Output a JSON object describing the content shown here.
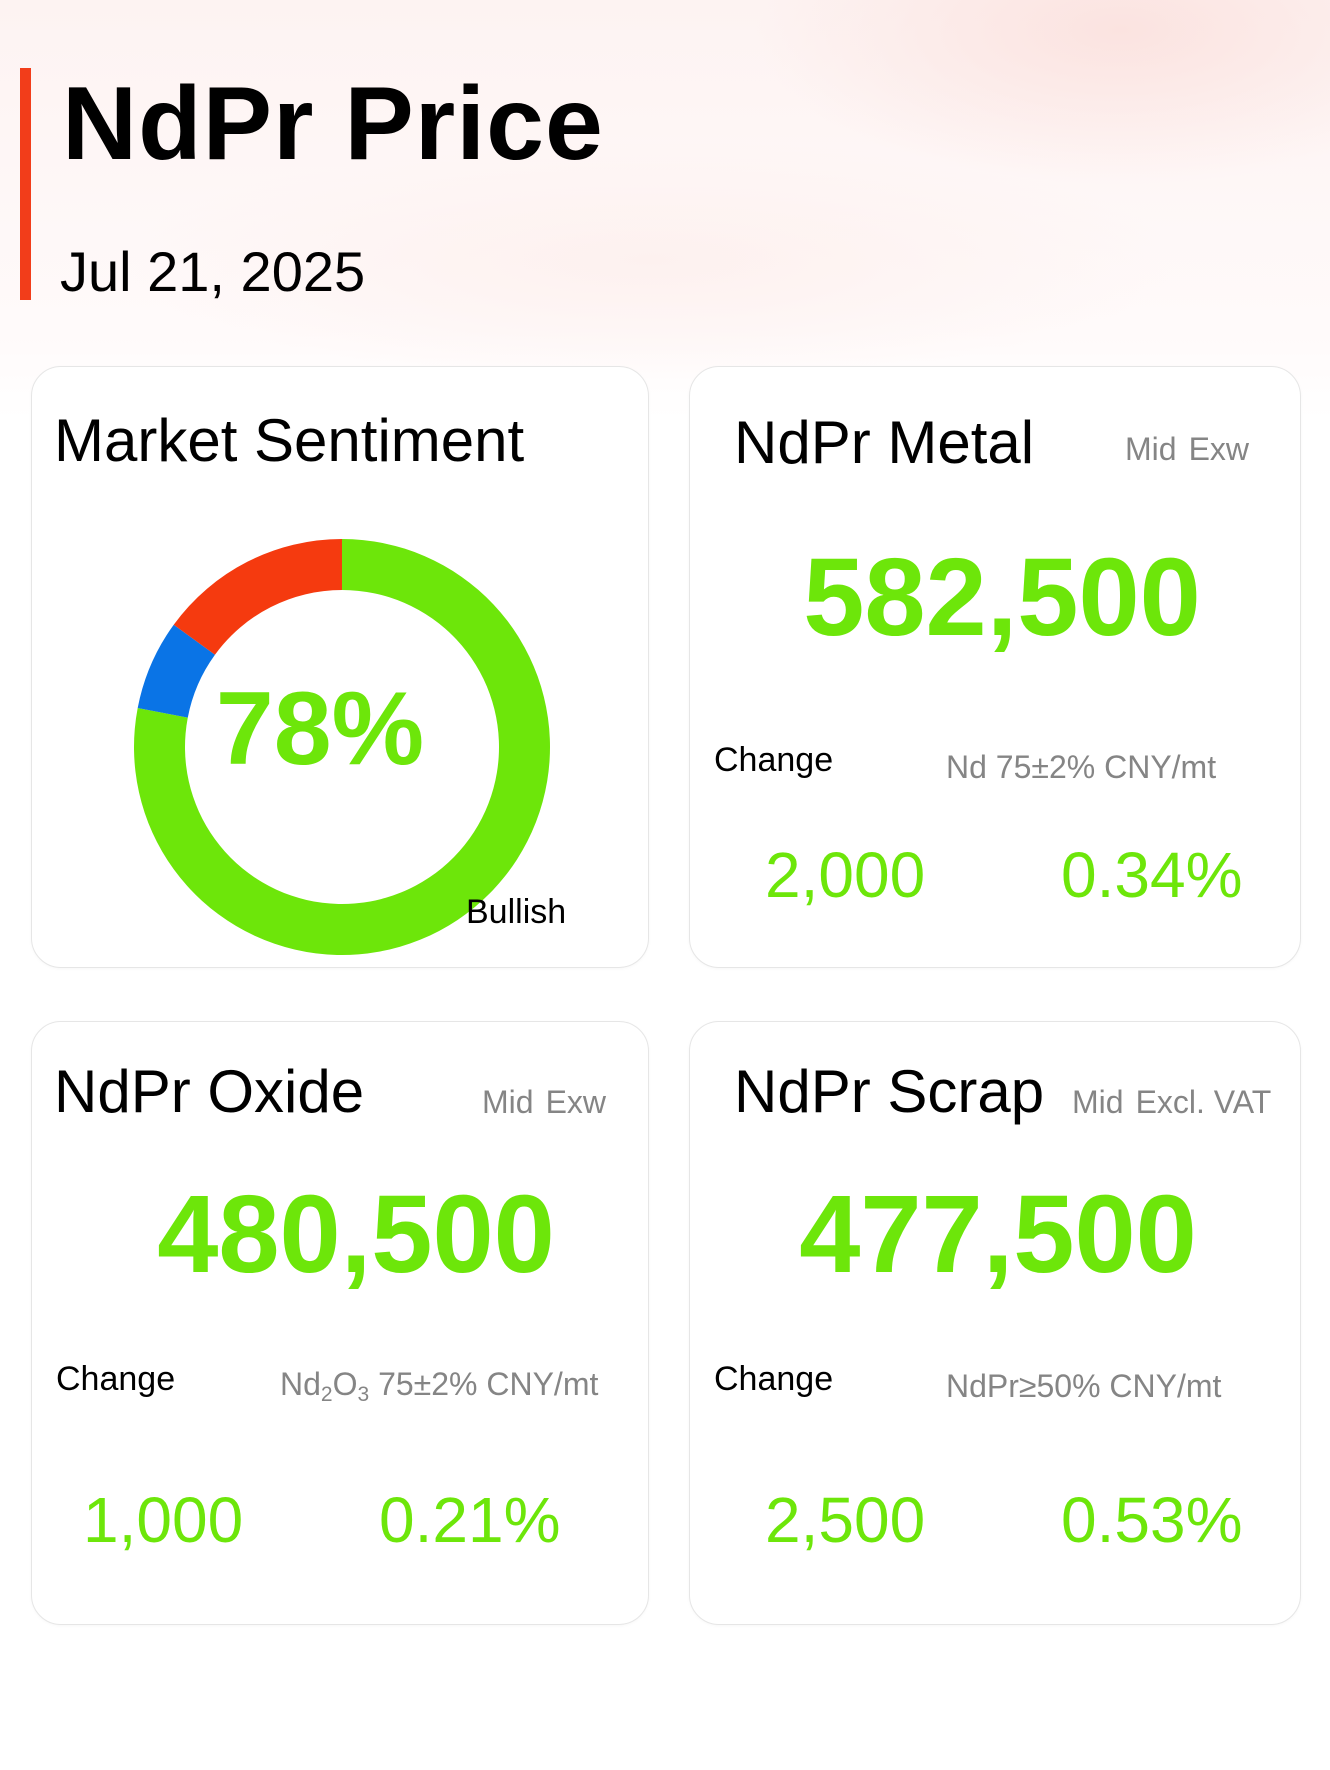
{
  "header": {
    "title": "NdPr Price",
    "date": "Jul 21, 2025"
  },
  "colors": {
    "accent": "#f23d1a",
    "positive": "#6de60a",
    "bearish": "#f53a0f",
    "neutral": "#0a74e6"
  },
  "sentiment": {
    "title": "Market Sentiment",
    "percent_label": "78%",
    "label": "Bullish",
    "segments": [
      {
        "name": "bullish",
        "value": 78,
        "color": "#6de60a"
      },
      {
        "name": "neutral",
        "value": 7,
        "color": "#0a74e6"
      },
      {
        "name": "bearish",
        "value": 15,
        "color": "#f53a0f"
      }
    ]
  },
  "metal": {
    "title": "NdPr Metal",
    "mid": "Mid",
    "basis": "Exw",
    "price": "582,500",
    "change_label": "Change",
    "spec": "Nd 75±2% CNY/mt",
    "change_abs": "2,000",
    "change_pct": "0.34%"
  },
  "oxide": {
    "title": "NdPr Oxide",
    "mid": "Mid",
    "basis": "Exw",
    "price": "480,500",
    "change_label": "Change",
    "spec_nd": "Nd",
    "spec_sub1": "2",
    "spec_o": "O",
    "spec_sub2": "3",
    "spec_rest": " 75±2% CNY/mt",
    "change_abs": "1,000",
    "change_pct": "0.21%"
  },
  "scrap": {
    "title": "NdPr Scrap",
    "mid": "Mid",
    "basis": "Excl. VAT",
    "price": "477,500",
    "change_label": "Change",
    "spec": "NdPr≥50% CNY/mt",
    "change_abs": "2,500",
    "change_pct": "0.53%"
  }
}
